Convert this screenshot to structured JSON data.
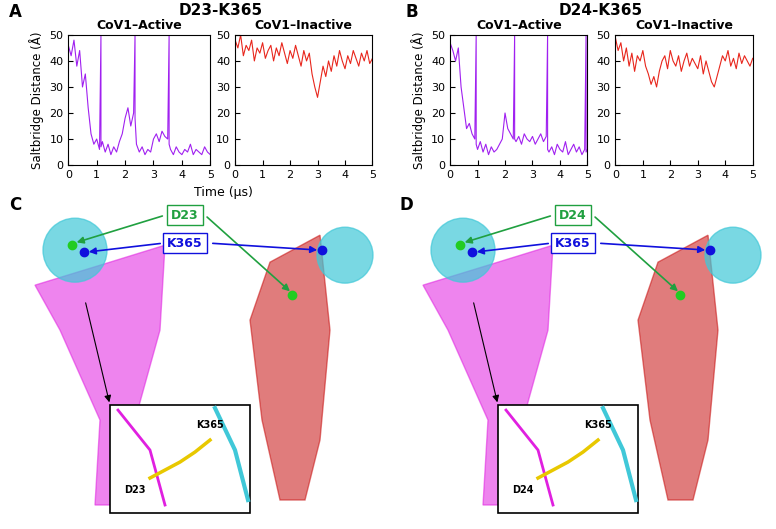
{
  "chart_data": [
    {
      "type": "line",
      "title": "CoV1–Active",
      "xlabel": "Time (μs)",
      "ylabel": "Saltbridge Distance (Å)",
      "xlim": [
        0,
        5
      ],
      "ylim": [
        0,
        50
      ],
      "xticks": [
        0,
        1,
        2,
        3,
        4,
        5
      ],
      "yticks": [
        0,
        10,
        20,
        30,
        40,
        50
      ],
      "color": "#a020f0",
      "x": [
        0,
        0.1,
        0.2,
        0.3,
        0.4,
        0.5,
        0.6,
        0.7,
        0.8,
        0.9,
        1.0,
        1.1,
        1.15,
        1.15,
        1.2,
        1.3,
        1.4,
        1.5,
        1.6,
        1.7,
        1.8,
        1.9,
        2.0,
        2.1,
        2.2,
        2.3,
        2.35,
        2.35,
        2.4,
        2.5,
        2.6,
        2.7,
        2.8,
        2.9,
        3.0,
        3.1,
        3.2,
        3.3,
        3.4,
        3.5,
        3.55,
        3.55,
        3.6,
        3.7,
        3.8,
        3.9,
        4.0,
        4.1,
        4.2,
        4.3,
        4.4,
        4.5,
        4.6,
        4.7,
        4.8,
        4.9,
        5.0
      ],
      "values": [
        46,
        42,
        48,
        38,
        44,
        30,
        35,
        22,
        12,
        8,
        10,
        6,
        50,
        7,
        9,
        5,
        8,
        4,
        7,
        5,
        9,
        12,
        18,
        22,
        15,
        20,
        50,
        18,
        8,
        5,
        7,
        4,
        6,
        5,
        10,
        12,
        9,
        13,
        11,
        10,
        50,
        8,
        6,
        4,
        7,
        5,
        4,
        6,
        5,
        8,
        4,
        6,
        5,
        4,
        7,
        5,
        4
      ]
    },
    {
      "type": "line",
      "title": "CoV1–Inactive",
      "xlim": [
        0,
        5
      ],
      "ylim": [
        0,
        50
      ],
      "xticks": [
        0,
        1,
        2,
        3,
        4,
        5
      ],
      "yticks": [
        0,
        10,
        20,
        30,
        40,
        50
      ],
      "color": "#e8261c",
      "x": [
        0,
        0.1,
        0.2,
        0.3,
        0.4,
        0.5,
        0.6,
        0.7,
        0.8,
        0.9,
        1.0,
        1.1,
        1.2,
        1.3,
        1.4,
        1.5,
        1.6,
        1.7,
        1.8,
        1.9,
        2.0,
        2.1,
        2.2,
        2.3,
        2.4,
        2.5,
        2.6,
        2.7,
        2.8,
        2.9,
        3.0,
        3.1,
        3.2,
        3.3,
        3.4,
        3.5,
        3.6,
        3.7,
        3.8,
        3.9,
        4.0,
        4.1,
        4.2,
        4.3,
        4.4,
        4.5,
        4.6,
        4.7,
        4.8,
        4.9,
        5.0
      ],
      "values": [
        48,
        45,
        50,
        42,
        46,
        44,
        48,
        40,
        45,
        43,
        47,
        41,
        44,
        46,
        40,
        45,
        42,
        47,
        43,
        39,
        44,
        41,
        46,
        42,
        38,
        44,
        40,
        43,
        35,
        30,
        26,
        32,
        38,
        34,
        40,
        36,
        42,
        38,
        44,
        40,
        37,
        42,
        39,
        44,
        41,
        38,
        43,
        40,
        44,
        39,
        41
      ]
    },
    {
      "type": "line",
      "title": "CoV1–Active",
      "ylabel": "Saltbridge Distance (Å)",
      "xlim": [
        0,
        5
      ],
      "ylim": [
        0,
        50
      ],
      "xticks": [
        0,
        1,
        2,
        3,
        4,
        5
      ],
      "yticks": [
        0,
        10,
        20,
        30,
        40,
        50
      ],
      "color": "#a020f0",
      "x": [
        0,
        0.1,
        0.2,
        0.3,
        0.4,
        0.5,
        0.6,
        0.7,
        0.8,
        0.9,
        0.95,
        0.95,
        1.0,
        1.1,
        1.2,
        1.3,
        1.4,
        1.5,
        1.6,
        1.7,
        1.8,
        1.9,
        2.0,
        2.1,
        2.2,
        2.3,
        2.35,
        2.35,
        2.4,
        2.5,
        2.6,
        2.7,
        2.8,
        2.9,
        3.0,
        3.1,
        3.2,
        3.3,
        3.4,
        3.5,
        3.55,
        3.55,
        3.6,
        3.7,
        3.8,
        3.9,
        4.0,
        4.1,
        4.2,
        4.3,
        4.4,
        4.5,
        4.6,
        4.7,
        4.8,
        4.9,
        4.95,
        4.95,
        5.0
      ],
      "values": [
        47,
        44,
        40,
        45,
        30,
        22,
        14,
        16,
        12,
        10,
        50,
        8,
        6,
        9,
        5,
        8,
        4,
        7,
        5,
        6,
        8,
        10,
        20,
        14,
        12,
        10,
        50,
        10,
        9,
        11,
        8,
        12,
        10,
        9,
        11,
        8,
        10,
        12,
        9,
        11,
        50,
        6,
        5,
        7,
        4,
        8,
        6,
        5,
        9,
        4,
        6,
        8,
        5,
        7,
        4,
        6,
        50,
        5,
        6
      ]
    },
    {
      "type": "line",
      "title": "CoV1–Inactive",
      "xlim": [
        0,
        5
      ],
      "ylim": [
        0,
        50
      ],
      "xticks": [
        0,
        1,
        2,
        3,
        4,
        5
      ],
      "yticks": [
        0,
        10,
        20,
        30,
        40,
        50
      ],
      "color": "#e8261c",
      "x": [
        0,
        0.1,
        0.2,
        0.3,
        0.4,
        0.5,
        0.6,
        0.7,
        0.8,
        0.9,
        1.0,
        1.1,
        1.2,
        1.3,
        1.4,
        1.5,
        1.6,
        1.7,
        1.8,
        1.9,
        2.0,
        2.1,
        2.2,
        2.3,
        2.4,
        2.5,
        2.6,
        2.7,
        2.8,
        2.9,
        3.0,
        3.1,
        3.2,
        3.3,
        3.4,
        3.5,
        3.6,
        3.7,
        3.8,
        3.9,
        4.0,
        4.1,
        4.2,
        4.3,
        4.4,
        4.5,
        4.6,
        4.7,
        4.8,
        4.9,
        5.0
      ],
      "values": [
        49,
        44,
        47,
        40,
        45,
        38,
        43,
        36,
        42,
        40,
        44,
        38,
        35,
        31,
        34,
        30,
        36,
        40,
        42,
        37,
        44,
        40,
        38,
        42,
        36,
        40,
        43,
        38,
        41,
        39,
        37,
        42,
        35,
        40,
        36,
        32,
        30,
        34,
        38,
        42,
        40,
        44,
        38,
        41,
        37,
        43,
        39,
        42,
        40,
        38,
        41
      ]
    }
  ],
  "panels": [
    {
      "label": "A",
      "title": "D23-K365"
    },
    {
      "label": "B",
      "title": "D24-K365"
    },
    {
      "label": "C",
      "residue_1": "D23",
      "residue_2": "K365",
      "inset_labels": [
        "K365",
        "D23"
      ]
    },
    {
      "label": "D",
      "residue_1": "D24",
      "residue_2": "K365",
      "inset_labels": [
        "K365",
        "D24"
      ]
    }
  ]
}
